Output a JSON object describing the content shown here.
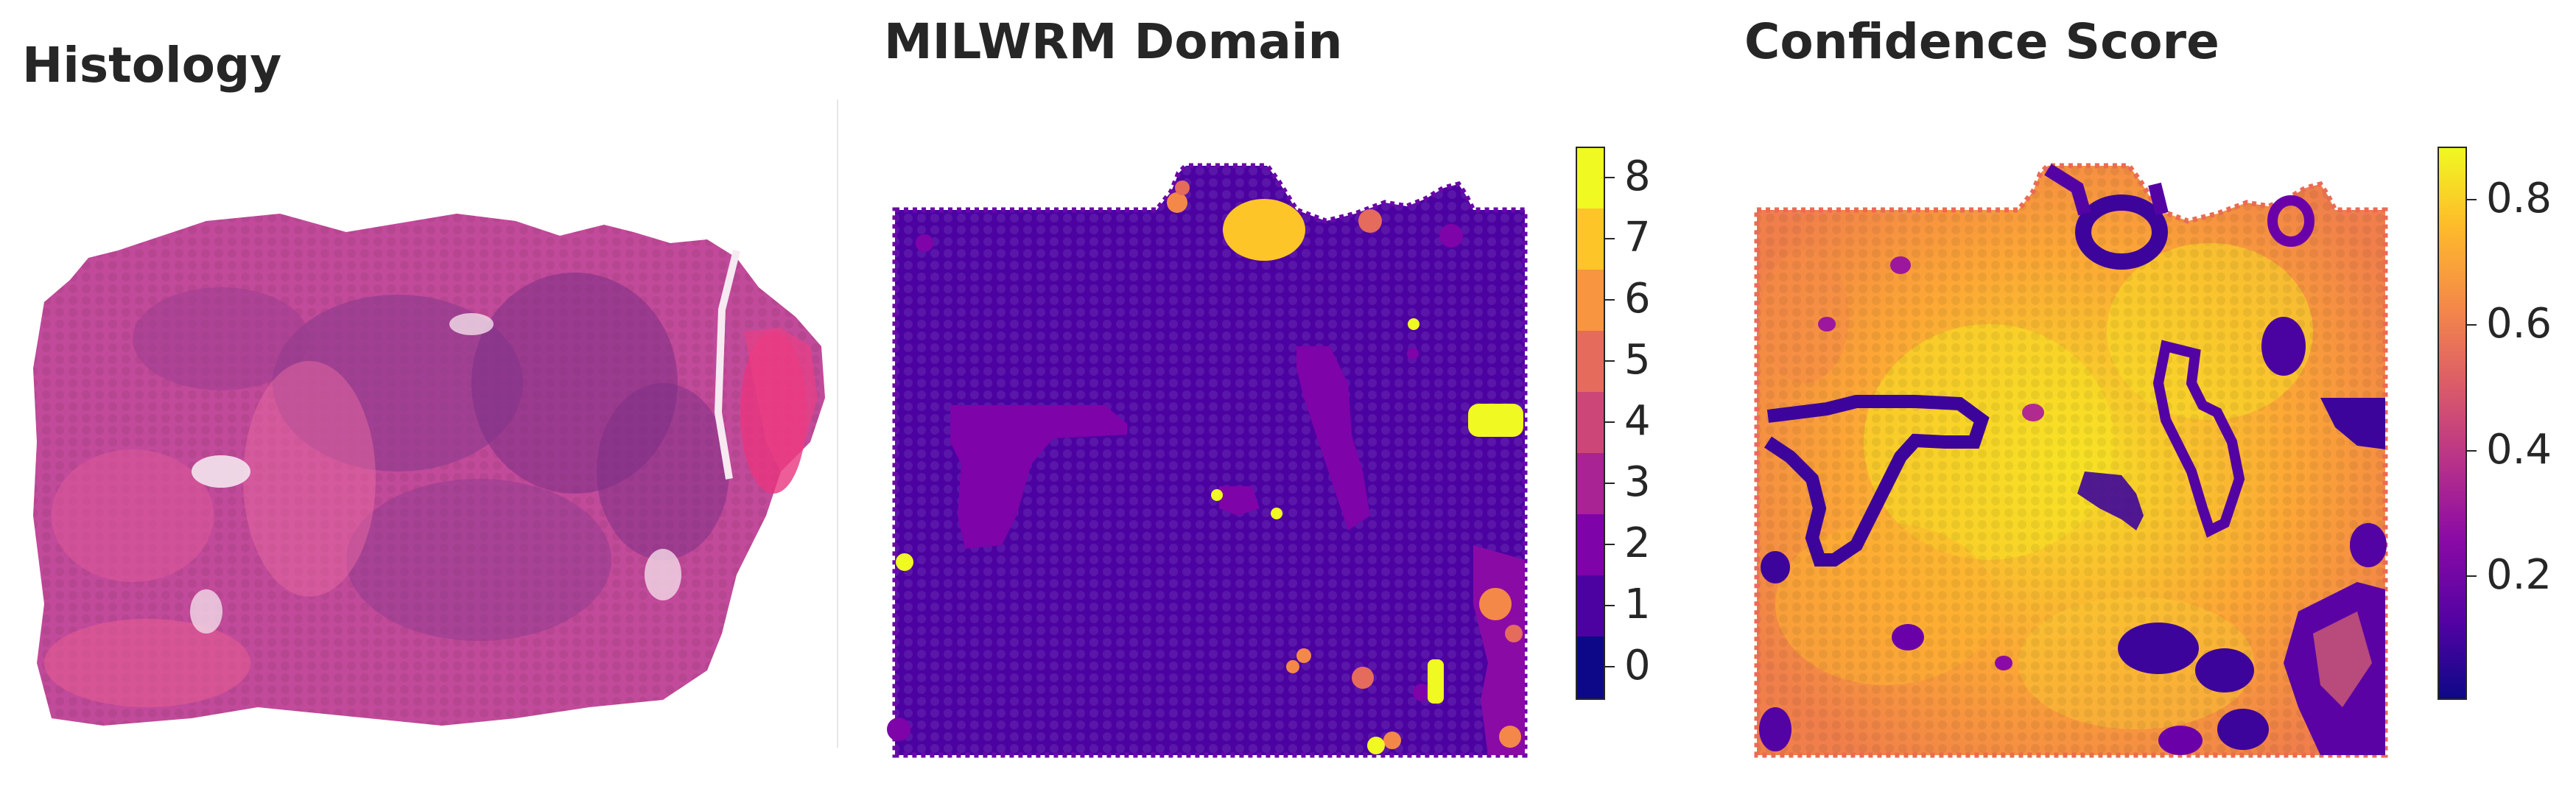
{
  "panels": {
    "histology": {
      "title": "Histology"
    },
    "domain": {
      "title": "MILWRM Domain",
      "colorbar_ticks": [
        "0",
        "1",
        "2",
        "3",
        "4",
        "5",
        "6",
        "7",
        "8"
      ],
      "colors": [
        "#0d0887",
        "#4c02a1",
        "#7e03a8",
        "#a92395",
        "#cc4778",
        "#e56b5d",
        "#f89540",
        "#fdc527",
        "#f0f921"
      ]
    },
    "confidence": {
      "title": "Confidence Score",
      "colorbar_ticks": [
        "0.2",
        "0.4",
        "0.6",
        "0.8"
      ],
      "colormap": "plasma",
      "range": [
        0.0,
        0.88
      ]
    }
  }
}
